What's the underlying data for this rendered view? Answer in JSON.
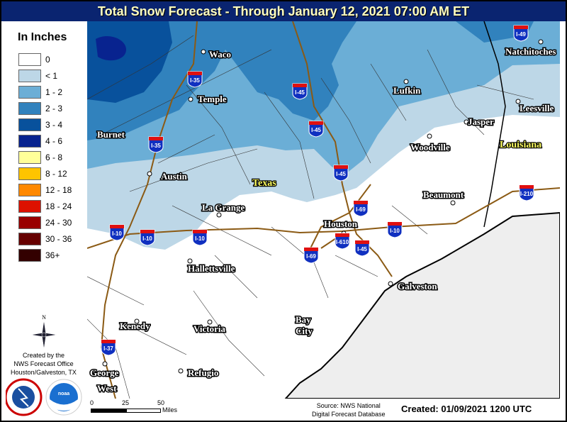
{
  "title": "Total Snow Forecast - Through January 12, 2021 07:00 AM ET",
  "legend": {
    "title": "In Inches",
    "items": [
      {
        "label": "0",
        "color": "#ffffff"
      },
      {
        "label": "< 1",
        "color": "#bdd7e7"
      },
      {
        "label": "1 - 2",
        "color": "#6baed6"
      },
      {
        "label": "2 - 3",
        "color": "#3182bd"
      },
      {
        "label": "3 - 4",
        "color": "#08519c"
      },
      {
        "label": "4 - 6",
        "color": "#08238f"
      },
      {
        "label": "6 - 8",
        "color": "#ffff99"
      },
      {
        "label": "8 - 12",
        "color": "#ffc400"
      },
      {
        "label": "12 - 18",
        "color": "#ff8800"
      },
      {
        "label": "18 - 24",
        "color": "#dd1100"
      },
      {
        "label": "24 - 30",
        "color": "#990000"
      },
      {
        "label": "30 - 36",
        "color": "#660000"
      },
      {
        "label": "36+",
        "color": "#330000"
      }
    ]
  },
  "states": [
    "Texas",
    "Louisiana"
  ],
  "cities": [
    "Waco",
    "Temple",
    "Burnet",
    "Austin",
    "La Grange",
    "Lufkin",
    "Natchitoches",
    "Jasper",
    "Leesville",
    "Woodville",
    "Beaumont",
    "Houston",
    "Galveston",
    "Hallettsville",
    "Kenedy",
    "Victoria",
    "Bay",
    "City",
    "George",
    "West",
    "Refugio"
  ],
  "interstates": [
    "I-35",
    "I-45",
    "I-45",
    "I-45",
    "I-35",
    "I-49",
    "I-69",
    "I-10",
    "I-10",
    "I-10",
    "I-10",
    "I-610",
    "I-69",
    "I-45",
    "I-210",
    "I-37"
  ],
  "compass_label": "N",
  "credits": [
    "Created by the",
    "NWS Forecast Office",
    "Houston/Galveston, TX"
  ],
  "logos": [
    "NATIONAL WEATHER SERVICE",
    "NOAA"
  ],
  "scale": {
    "ticks": [
      "0",
      "25",
      "50"
    ],
    "unit": "Miles"
  },
  "source": [
    "Source: NWS National",
    "Digital Forecast Database"
  ],
  "created": "Created: 01/09/2021 1200 UTC"
}
